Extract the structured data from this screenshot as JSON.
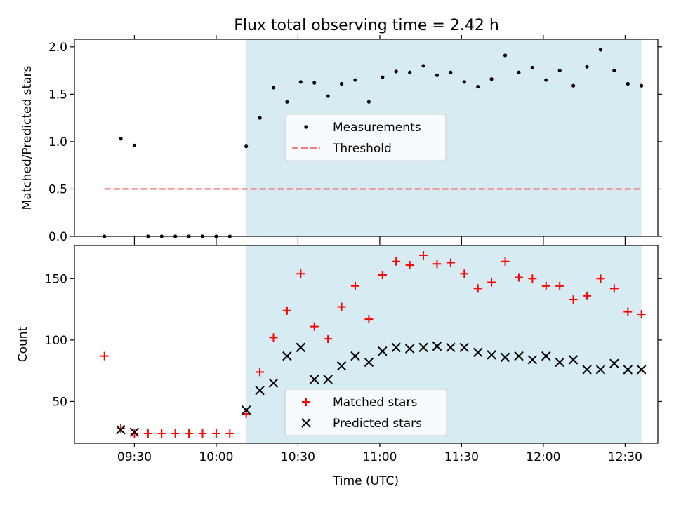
{
  "chart_data": [
    {
      "type": "scatter",
      "title": "Flux total observing time = 2.42 h",
      "ylabel": "Matched/Predicted stars",
      "xlabel": "",
      "ylim": [
        0,
        2.08
      ],
      "yticks": [
        0.0,
        0.5,
        1.0,
        1.5,
        2.0
      ],
      "ytick_labels": [
        "0.0",
        "0.5",
        "1.0",
        "1.5",
        "2.0"
      ],
      "xlim": [
        "09:08",
        "12:42"
      ],
      "xticks": [
        "09:30",
        "10:00",
        "10:30",
        "11:00",
        "11:30",
        "12:00",
        "12:30"
      ],
      "shaded_range": [
        "10:11",
        "12:36"
      ],
      "shaded_color": "#add8e6",
      "legend": {
        "location": "center",
        "entries": [
          "Measurements",
          "Threshold"
        ]
      },
      "series": [
        {
          "name": "Measurements",
          "marker": "dot",
          "color": "#000000",
          "x": [
            "09:19",
            "09:25",
            "09:30",
            "09:35",
            "09:40",
            "09:45",
            "09:50",
            "09:55",
            "10:00",
            "10:05",
            "10:11",
            "10:16",
            "10:21",
            "10:26",
            "10:31",
            "10:36",
            "10:41",
            "10:46",
            "10:51",
            "10:56",
            "11:01",
            "11:06",
            "11:11",
            "11:16",
            "11:21",
            "11:26",
            "11:31",
            "11:36",
            "11:41",
            "11:46",
            "11:51",
            "11:56",
            "12:01",
            "12:06",
            "12:11",
            "12:16",
            "12:21",
            "12:26",
            "12:31",
            "12:36"
          ],
          "y": [
            0.0,
            1.03,
            0.96,
            0.0,
            0.0,
            0.0,
            0.0,
            0.0,
            0.0,
            0.0,
            0.95,
            1.25,
            1.57,
            1.42,
            1.63,
            1.62,
            1.48,
            1.61,
            1.65,
            1.42,
            1.68,
            1.74,
            1.73,
            1.8,
            1.7,
            1.73,
            1.63,
            1.58,
            1.66,
            1.91,
            1.73,
            1.78,
            1.65,
            1.75,
            1.59,
            1.79,
            1.97,
            1.75,
            1.61,
            1.59
          ]
        },
        {
          "name": "Threshold",
          "marker": "dashed-line",
          "color": "#f08080",
          "x": [
            "09:19",
            "12:36"
          ],
          "y": [
            0.5,
            0.5
          ]
        }
      ]
    },
    {
      "type": "scatter",
      "title": "",
      "ylabel": "Count",
      "xlabel": "Time (UTC)",
      "ylim": [
        16,
        177
      ],
      "yticks": [
        50,
        100,
        150
      ],
      "ytick_labels": [
        "50",
        "100",
        "150"
      ],
      "xlim": [
        "09:08",
        "12:42"
      ],
      "xticks": [
        "09:30",
        "10:00",
        "10:30",
        "11:00",
        "11:30",
        "12:00",
        "12:30"
      ],
      "xtick_labels": [
        "09:30",
        "10:00",
        "10:30",
        "11:00",
        "11:30",
        "12:00",
        "12:30"
      ],
      "shaded_range": [
        "10:11",
        "12:36"
      ],
      "shaded_color": "#add8e6",
      "legend": {
        "location": "lower center",
        "entries": [
          "Matched stars",
          "Predicted stars"
        ]
      },
      "series": [
        {
          "name": "Matched stars",
          "marker": "plus",
          "color": "#ff0000",
          "x": [
            "09:19",
            "09:25",
            "09:30",
            "09:35",
            "09:40",
            "09:45",
            "09:50",
            "09:55",
            "10:00",
            "10:05",
            "10:11",
            "10:16",
            "10:21",
            "10:26",
            "10:31",
            "10:36",
            "10:41",
            "10:46",
            "10:51",
            "10:56",
            "11:01",
            "11:06",
            "11:11",
            "11:16",
            "11:21",
            "11:26",
            "11:31",
            "11:36",
            "11:41",
            "11:46",
            "11:51",
            "11:56",
            "12:01",
            "12:06",
            "12:11",
            "12:16",
            "12:21",
            "12:26",
            "12:31",
            "12:36"
          ],
          "y": [
            87,
            28,
            24,
            24,
            24,
            24,
            24,
            24,
            24,
            24,
            40,
            74,
            102,
            124,
            154,
            111,
            101,
            127,
            144,
            117,
            153,
            164,
            161,
            169,
            162,
            163,
            154,
            142,
            147,
            164,
            151,
            150,
            144,
            144,
            133,
            136,
            150,
            142,
            123,
            121
          ]
        },
        {
          "name": "Predicted stars",
          "marker": "x",
          "color": "#000000",
          "x": [
            "09:25",
            "09:30",
            "10:11",
            "10:16",
            "10:21",
            "10:26",
            "10:31",
            "10:36",
            "10:41",
            "10:46",
            "10:51",
            "10:56",
            "11:01",
            "11:06",
            "11:11",
            "11:16",
            "11:21",
            "11:26",
            "11:31",
            "11:36",
            "11:41",
            "11:46",
            "11:51",
            "11:56",
            "12:01",
            "12:06",
            "12:11",
            "12:16",
            "12:21",
            "12:26",
            "12:31",
            "12:36"
          ],
          "y": [
            27,
            25,
            43,
            59,
            65,
            87,
            94,
            68,
            68,
            79,
            87,
            82,
            91,
            94,
            93,
            94,
            95,
            94,
            94,
            90,
            88,
            86,
            87,
            84,
            87,
            82,
            84,
            76,
            76,
            81,
            76,
            76
          ]
        }
      ]
    }
  ]
}
